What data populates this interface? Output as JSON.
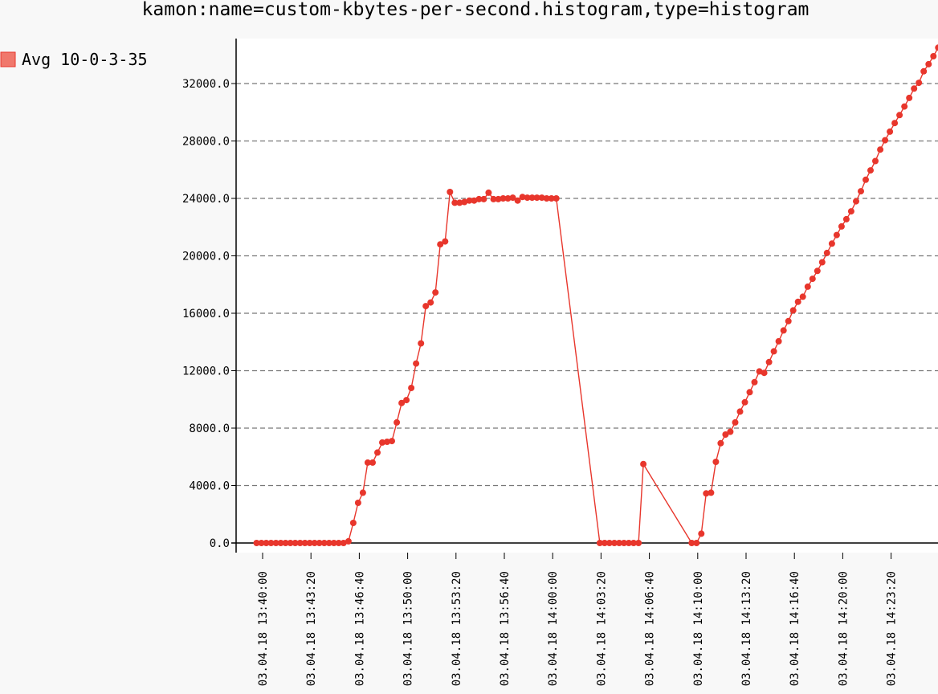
{
  "chart_data": {
    "type": "line",
    "title": "kamon:name=custom-kbytes-per-second.histogram,type=histogram",
    "xlabel": "",
    "ylabel": "",
    "ylim": [
      -700,
      35500
    ],
    "yticks": [
      "0.0",
      "4000.0",
      "8000.0",
      "12000.0",
      "16000.0",
      "20000.0",
      "24000.0",
      "28000.0",
      "32000.0"
    ],
    "xticks": [
      "03.04.18 13:40:00",
      "03.04.18 13:43:20",
      "03.04.18 13:46:40",
      "03.04.18 13:50:00",
      "03.04.18 13:53:20",
      "03.04.18 13:56:40",
      "03.04.18 14:00:00",
      "03.04.18 14:03:20",
      "03.04.18 14:06:40",
      "03.04.18 14:10:00",
      "03.04.18 14:13:20",
      "03.04.18 14:16:40",
      "03.04.18 14:20:00",
      "03.04.18 14:23:20"
    ],
    "grid": true,
    "legend_position": "left",
    "color": "#e8362c",
    "series": [
      {
        "name": "Avg 10-0-3-35",
        "points": [
          [
            "13:39:35",
            0
          ],
          [
            "13:39:55",
            0
          ],
          [
            "13:40:15",
            0
          ],
          [
            "13:40:35",
            0
          ],
          [
            "13:40:55",
            0
          ],
          [
            "13:41:15",
            0
          ],
          [
            "13:41:35",
            0
          ],
          [
            "13:41:55",
            0
          ],
          [
            "13:42:15",
            0
          ],
          [
            "13:42:35",
            0
          ],
          [
            "13:42:55",
            0
          ],
          [
            "13:43:15",
            0
          ],
          [
            "13:43:35",
            0
          ],
          [
            "13:43:55",
            0
          ],
          [
            "13:44:15",
            0
          ],
          [
            "13:44:35",
            0
          ],
          [
            "13:44:55",
            0
          ],
          [
            "13:45:15",
            0
          ],
          [
            "13:45:35",
            0
          ],
          [
            "13:45:55",
            120
          ],
          [
            "13:46:15",
            1400
          ],
          [
            "13:46:35",
            2800
          ],
          [
            "13:46:55",
            3500
          ],
          [
            "13:47:15",
            5600
          ],
          [
            "13:47:35",
            5600
          ],
          [
            "13:47:55",
            6300
          ],
          [
            "13:48:15",
            7000
          ],
          [
            "13:48:35",
            7050
          ],
          [
            "13:48:55",
            7100
          ],
          [
            "13:49:15",
            8400
          ],
          [
            "13:49:35",
            9750
          ],
          [
            "13:49:55",
            9950
          ],
          [
            "13:50:15",
            10800
          ],
          [
            "13:50:35",
            12500
          ],
          [
            "13:50:55",
            13900
          ],
          [
            "13:51:15",
            16500
          ],
          [
            "13:51:35",
            16750
          ],
          [
            "13:51:55",
            17450
          ],
          [
            "13:52:15",
            20800
          ],
          [
            "13:52:35",
            21000
          ],
          [
            "13:52:55",
            24450
          ],
          [
            "13:53:15",
            23700
          ],
          [
            "13:53:35",
            23700
          ],
          [
            "13:53:55",
            23750
          ],
          [
            "13:54:15",
            23850
          ],
          [
            "13:54:35",
            23850
          ],
          [
            "13:54:55",
            23950
          ],
          [
            "13:55:15",
            23950
          ],
          [
            "13:55:35",
            24400
          ],
          [
            "13:55:55",
            23950
          ],
          [
            "13:56:15",
            23950
          ],
          [
            "13:56:35",
            24000
          ],
          [
            "13:56:55",
            24000
          ],
          [
            "13:57:15",
            24050
          ],
          [
            "13:57:35",
            23850
          ],
          [
            "13:57:55",
            24100
          ],
          [
            "13:58:15",
            24050
          ],
          [
            "13:58:35",
            24050
          ],
          [
            "13:58:55",
            24050
          ],
          [
            "13:59:15",
            24050
          ],
          [
            "13:59:35",
            24000
          ],
          [
            "13:59:55",
            24000
          ],
          [
            "14:00:15",
            24000
          ],
          [
            "14:03:15",
            0
          ],
          [
            "14:03:35",
            0
          ],
          [
            "14:03:55",
            0
          ],
          [
            "14:04:15",
            0
          ],
          [
            "14:04:35",
            0
          ],
          [
            "14:04:55",
            0
          ],
          [
            "14:05:15",
            0
          ],
          [
            "14:05:35",
            0
          ],
          [
            "14:05:55",
            0
          ],
          [
            "14:06:15",
            5500
          ],
          [
            "14:09:35",
            0
          ],
          [
            "14:09:55",
            0
          ],
          [
            "14:10:15",
            650
          ],
          [
            "14:10:35",
            3450
          ],
          [
            "14:10:55",
            3500
          ],
          [
            "14:11:15",
            5650
          ],
          [
            "14:11:35",
            6950
          ],
          [
            "14:11:55",
            7550
          ],
          [
            "14:12:15",
            7750
          ],
          [
            "14:12:35",
            8400
          ],
          [
            "14:12:55",
            9150
          ],
          [
            "14:13:15",
            9800
          ],
          [
            "14:13:35",
            10500
          ],
          [
            "14:13:55",
            11200
          ],
          [
            "14:14:15",
            11950
          ],
          [
            "14:14:35",
            11850
          ],
          [
            "14:14:55",
            12600
          ],
          [
            "14:15:15",
            13350
          ],
          [
            "14:15:35",
            14050
          ],
          [
            "14:15:55",
            14800
          ],
          [
            "14:16:15",
            15450
          ],
          [
            "14:16:35",
            16200
          ],
          [
            "14:16:55",
            16800
          ],
          [
            "14:17:15",
            17150
          ],
          [
            "14:17:35",
            17850
          ],
          [
            "14:17:55",
            18400
          ],
          [
            "14:18:15",
            18950
          ],
          [
            "14:18:35",
            19550
          ],
          [
            "14:18:55",
            20200
          ],
          [
            "14:19:15",
            20850
          ],
          [
            "14:19:35",
            21450
          ],
          [
            "14:19:55",
            22050
          ],
          [
            "14:20:15",
            22550
          ],
          [
            "14:20:35",
            23100
          ],
          [
            "14:20:55",
            23800
          ],
          [
            "14:21:15",
            24500
          ],
          [
            "14:21:35",
            25300
          ],
          [
            "14:21:55",
            25950
          ],
          [
            "14:22:15",
            26600
          ],
          [
            "14:22:35",
            27400
          ],
          [
            "14:22:55",
            28050
          ],
          [
            "14:23:15",
            28650
          ],
          [
            "14:23:35",
            29250
          ],
          [
            "14:23:55",
            29800
          ],
          [
            "14:24:15",
            30400
          ],
          [
            "14:24:35",
            31000
          ],
          [
            "14:24:55",
            31650
          ],
          [
            "14:25:15",
            32050
          ],
          [
            "14:25:35",
            32850
          ],
          [
            "14:25:55",
            33350
          ],
          [
            "14:26:15",
            33900
          ],
          [
            "14:26:35",
            34500
          ]
        ]
      }
    ]
  }
}
